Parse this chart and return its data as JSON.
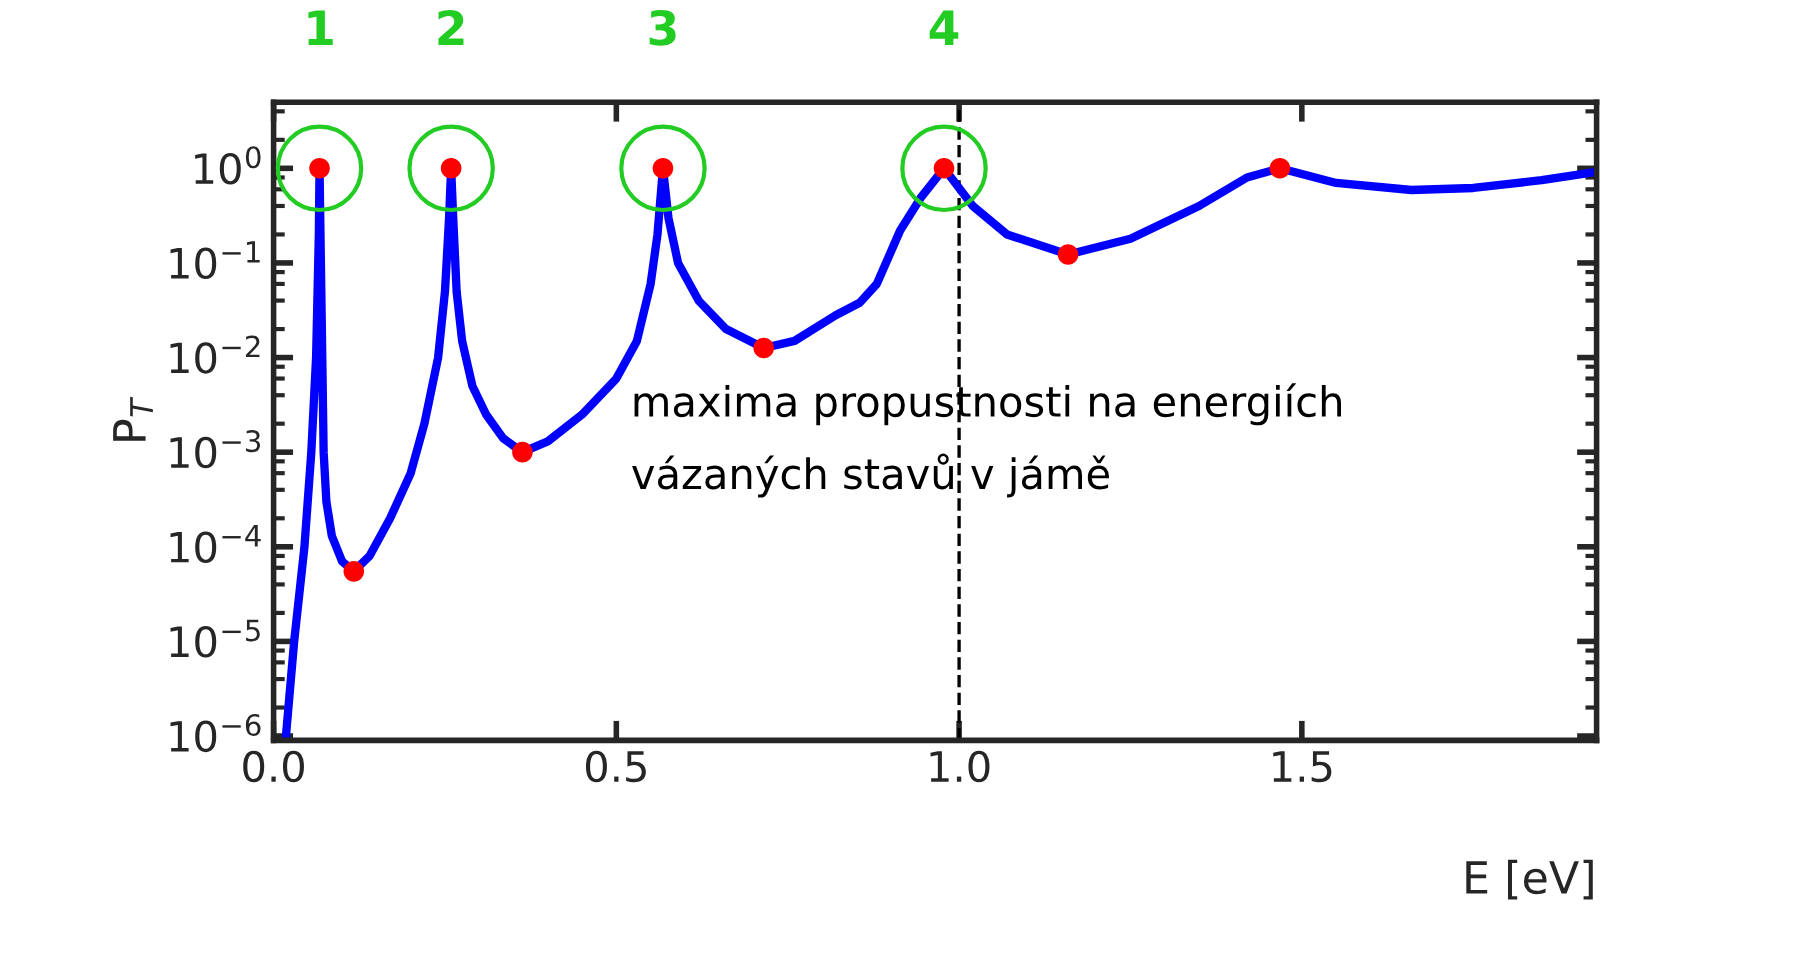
{
  "chart_data": {
    "type": "line",
    "xlabel": "E [eV]",
    "ylabel": "P$_{T}$",
    "log": "y",
    "grid": false,
    "xlim": [
      0,
      1.93
    ],
    "ylim": [
      9e-07,
      5
    ],
    "xticks": [
      {
        "value": 0,
        "label": "0.0"
      },
      0.5,
      {
        "value": 1,
        "label": "1.0"
      },
      1.5
    ],
    "yticks": [
      {
        "value": 1e-06,
        "label": "10$^{−6}$"
      },
      {
        "value": 1e-05,
        "label": "10$^{−5}$"
      },
      {
        "value": 0.0001,
        "label": "10$^{−4}$"
      },
      {
        "value": 0.001,
        "label": "10$^{−3}$"
      },
      {
        "value": 0.01,
        "label": "10$^{−2}$"
      },
      {
        "value": 0.1,
        "label": "10$^{−1}$"
      },
      {
        "value": 1,
        "label": "10$^{0}$"
      }
    ],
    "series": [
      {
        "color": "#0000ff",
        "line_style": "solid",
        "marker": "none",
        "x": [
          0.018,
          0.03,
          0.045,
          0.055,
          0.062,
          0.066,
          0.067,
          0.069,
          0.071,
          0.073,
          0.077,
          0.085,
          0.1,
          0.117,
          0.14,
          0.17,
          0.2,
          0.22,
          0.24,
          0.25,
          0.256,
          0.259,
          0.262,
          0.267,
          0.275,
          0.29,
          0.31,
          0.335,
          0.363,
          0.4,
          0.45,
          0.5,
          0.53,
          0.55,
          0.56,
          0.568,
          0.576,
          0.59,
          0.62,
          0.66,
          0.715,
          0.76,
          0.82,
          0.855,
          0.88,
          0.914,
          0.945,
          0.978,
          1.02,
          1.07,
          1.159,
          1.25,
          1.35,
          1.42,
          1.468,
          1.55,
          1.66,
          1.75,
          1.85,
          1.93
        ],
        "values": [
          1e-06,
          1e-05,
          0.0001,
          0.001,
          0.01,
          0.2,
          1,
          0.1,
          0.01,
          0.001,
          0.0003,
          0.00013,
          7e-05,
          5.5e-05,
          8e-05,
          0.0002,
          0.0006,
          0.002,
          0.01,
          0.05,
          0.3,
          1,
          0.3,
          0.05,
          0.015,
          0.005,
          0.0025,
          0.0014,
          0.001,
          0.0013,
          0.0025,
          0.006,
          0.015,
          0.06,
          0.2,
          1,
          0.3,
          0.1,
          0.04,
          0.02,
          0.0126,
          0.015,
          0.028,
          0.038,
          0.06,
          0.22,
          0.5,
          1,
          0.4,
          0.2,
          0.123,
          0.18,
          0.4,
          0.8,
          1,
          0.7,
          0.59,
          0.62,
          0.75,
          0.92
        ]
      },
      {
        "type": "scatter",
        "color": "#ff0000",
        "marker": "circle",
        "x": [
          0.067,
          0.117,
          0.259,
          0.363,
          0.568,
          0.715,
          0.978,
          1.159,
          1.468
        ],
        "values": [
          1,
          5.5e-05,
          1,
          0.001,
          1,
          0.0126,
          1,
          0.123,
          1
        ]
      }
    ],
    "ref_lines": [
      {
        "axis": "x",
        "value": 1.0,
        "color": "#000000",
        "line_style": "dashed"
      }
    ],
    "annotations": [
      "1",
      "2",
      "3",
      "4",
      "maxima propustnosti na energiích\nvázaných stavů v jámě"
    ]
  }
}
